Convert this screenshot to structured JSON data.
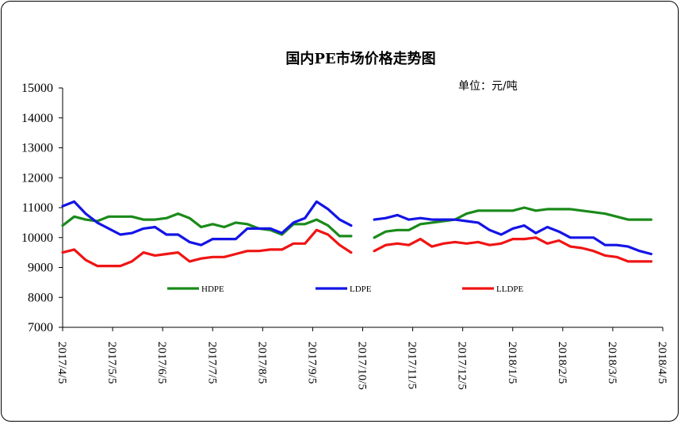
{
  "chart_data": {
    "type": "line",
    "title": "国内PE市场价格走势图",
    "unit_label": "单位：元/吨",
    "xlabel": "",
    "ylabel": "",
    "ylim": [
      7000,
      15000
    ],
    "yticks": [
      7000,
      8000,
      9000,
      10000,
      11000,
      12000,
      13000,
      14000,
      15000
    ],
    "xticks": [
      "2017/4/5",
      "2017/5/5",
      "2017/6/5",
      "2017/7/5",
      "2017/8/5",
      "2017/9/5",
      "2017/10/5",
      "2017/11/5",
      "2017/12/5",
      "2018/1/5",
      "2018/2/5",
      "2018/3/5",
      "2018/4/5"
    ],
    "grid": false,
    "legend_position": "bottom",
    "series": [
      {
        "name": "HDPE",
        "color": "#1a8a1a",
        "segments": [
          [
            [
              0,
              10400
            ],
            [
              1,
              10700
            ],
            [
              2,
              10600
            ],
            [
              3,
              10550
            ],
            [
              4,
              10700
            ],
            [
              5,
              10700
            ],
            [
              6,
              10700
            ],
            [
              7,
              10600
            ],
            [
              8,
              10600
            ],
            [
              9,
              10650
            ],
            [
              10,
              10800
            ],
            [
              11,
              10650
            ],
            [
              12,
              10350
            ],
            [
              13,
              10450
            ],
            [
              14,
              10350
            ],
            [
              15,
              10500
            ],
            [
              16,
              10450
            ],
            [
              17,
              10300
            ],
            [
              18,
              10250
            ],
            [
              19,
              10100
            ],
            [
              20,
              10450
            ],
            [
              21,
              10450
            ],
            [
              22,
              10600
            ],
            [
              23,
              10400
            ],
            [
              24,
              10050
            ],
            [
              25,
              10050
            ]
          ],
          [
            [
              27,
              10000
            ],
            [
              28,
              10200
            ],
            [
              29,
              10250
            ],
            [
              30,
              10250
            ],
            [
              31,
              10450
            ],
            [
              32,
              10500
            ],
            [
              33,
              10550
            ],
            [
              34,
              10600
            ],
            [
              35,
              10800
            ],
            [
              36,
              10900
            ],
            [
              37,
              10900
            ],
            [
              38,
              10900
            ],
            [
              39,
              10900
            ],
            [
              40,
              11000
            ],
            [
              41,
              10900
            ],
            [
              42,
              10950
            ],
            [
              43,
              10950
            ],
            [
              44,
              10950
            ],
            [
              45,
              10900
            ],
            [
              46,
              10850
            ],
            [
              47,
              10800
            ],
            [
              48,
              10700
            ],
            [
              49,
              10600
            ],
            [
              50,
              10600
            ],
            [
              51,
              10600
            ]
          ]
        ]
      },
      {
        "name": "LDPE",
        "color": "#1414e6",
        "segments": [
          [
            [
              0,
              11050
            ],
            [
              1,
              11200
            ],
            [
              2,
              10800
            ],
            [
              3,
              10500
            ],
            [
              4,
              10300
            ],
            [
              5,
              10100
            ],
            [
              6,
              10150
            ],
            [
              7,
              10300
            ],
            [
              8,
              10350
            ],
            [
              9,
              10100
            ],
            [
              10,
              10100
            ],
            [
              11,
              9850
            ],
            [
              12,
              9750
            ],
            [
              13,
              9950
            ],
            [
              14,
              9950
            ],
            [
              15,
              9950
            ],
            [
              16,
              10300
            ],
            [
              17,
              10300
            ],
            [
              18,
              10300
            ],
            [
              19,
              10150
            ],
            [
              20,
              10500
            ],
            [
              21,
              10650
            ],
            [
              22,
              11200
            ],
            [
              23,
              10950
            ],
            [
              24,
              10600
            ],
            [
              25,
              10400
            ]
          ],
          [
            [
              27,
              10600
            ],
            [
              28,
              10650
            ],
            [
              29,
              10750
            ],
            [
              30,
              10600
            ],
            [
              31,
              10650
            ],
            [
              32,
              10600
            ],
            [
              33,
              10600
            ],
            [
              34,
              10600
            ],
            [
              35,
              10550
            ],
            [
              36,
              10500
            ],
            [
              37,
              10250
            ],
            [
              38,
              10100
            ],
            [
              39,
              10300
            ],
            [
              40,
              10400
            ],
            [
              41,
              10150
            ],
            [
              42,
              10350
            ],
            [
              43,
              10200
            ],
            [
              44,
              10000
            ],
            [
              45,
              10000
            ],
            [
              46,
              10000
            ],
            [
              47,
              9750
            ],
            [
              48,
              9750
            ],
            [
              49,
              9700
            ],
            [
              50,
              9550
            ],
            [
              51,
              9450
            ]
          ]
        ]
      },
      {
        "name": "LLDPE",
        "color": "#f01414",
        "segments": [
          [
            [
              0,
              9500
            ],
            [
              1,
              9600
            ],
            [
              2,
              9250
            ],
            [
              3,
              9050
            ],
            [
              4,
              9050
            ],
            [
              5,
              9050
            ],
            [
              6,
              9200
            ],
            [
              7,
              9500
            ],
            [
              8,
              9400
            ],
            [
              9,
              9450
            ],
            [
              10,
              9500
            ],
            [
              11,
              9200
            ],
            [
              12,
              9300
            ],
            [
              13,
              9350
            ],
            [
              14,
              9350
            ],
            [
              15,
              9450
            ],
            [
              16,
              9550
            ],
            [
              17,
              9550
            ],
            [
              18,
              9600
            ],
            [
              19,
              9600
            ],
            [
              20,
              9800
            ],
            [
              21,
              9800
            ],
            [
              22,
              10250
            ],
            [
              23,
              10100
            ],
            [
              24,
              9750
            ],
            [
              25,
              9500
            ]
          ],
          [
            [
              27,
              9550
            ],
            [
              28,
              9750
            ],
            [
              29,
              9800
            ],
            [
              30,
              9750
            ],
            [
              31,
              9950
            ],
            [
              32,
              9700
            ],
            [
              33,
              9800
            ],
            [
              34,
              9850
            ],
            [
              35,
              9800
            ],
            [
              36,
              9850
            ],
            [
              37,
              9750
            ],
            [
              38,
              9800
            ],
            [
              39,
              9950
            ],
            [
              40,
              9950
            ],
            [
              41,
              10000
            ],
            [
              42,
              9800
            ],
            [
              43,
              9900
            ],
            [
              44,
              9700
            ],
            [
              45,
              9650
            ],
            [
              46,
              9550
            ],
            [
              47,
              9400
            ],
            [
              48,
              9350
            ],
            [
              49,
              9200
            ],
            [
              50,
              9200
            ],
            [
              51,
              9200
            ]
          ]
        ]
      }
    ]
  }
}
